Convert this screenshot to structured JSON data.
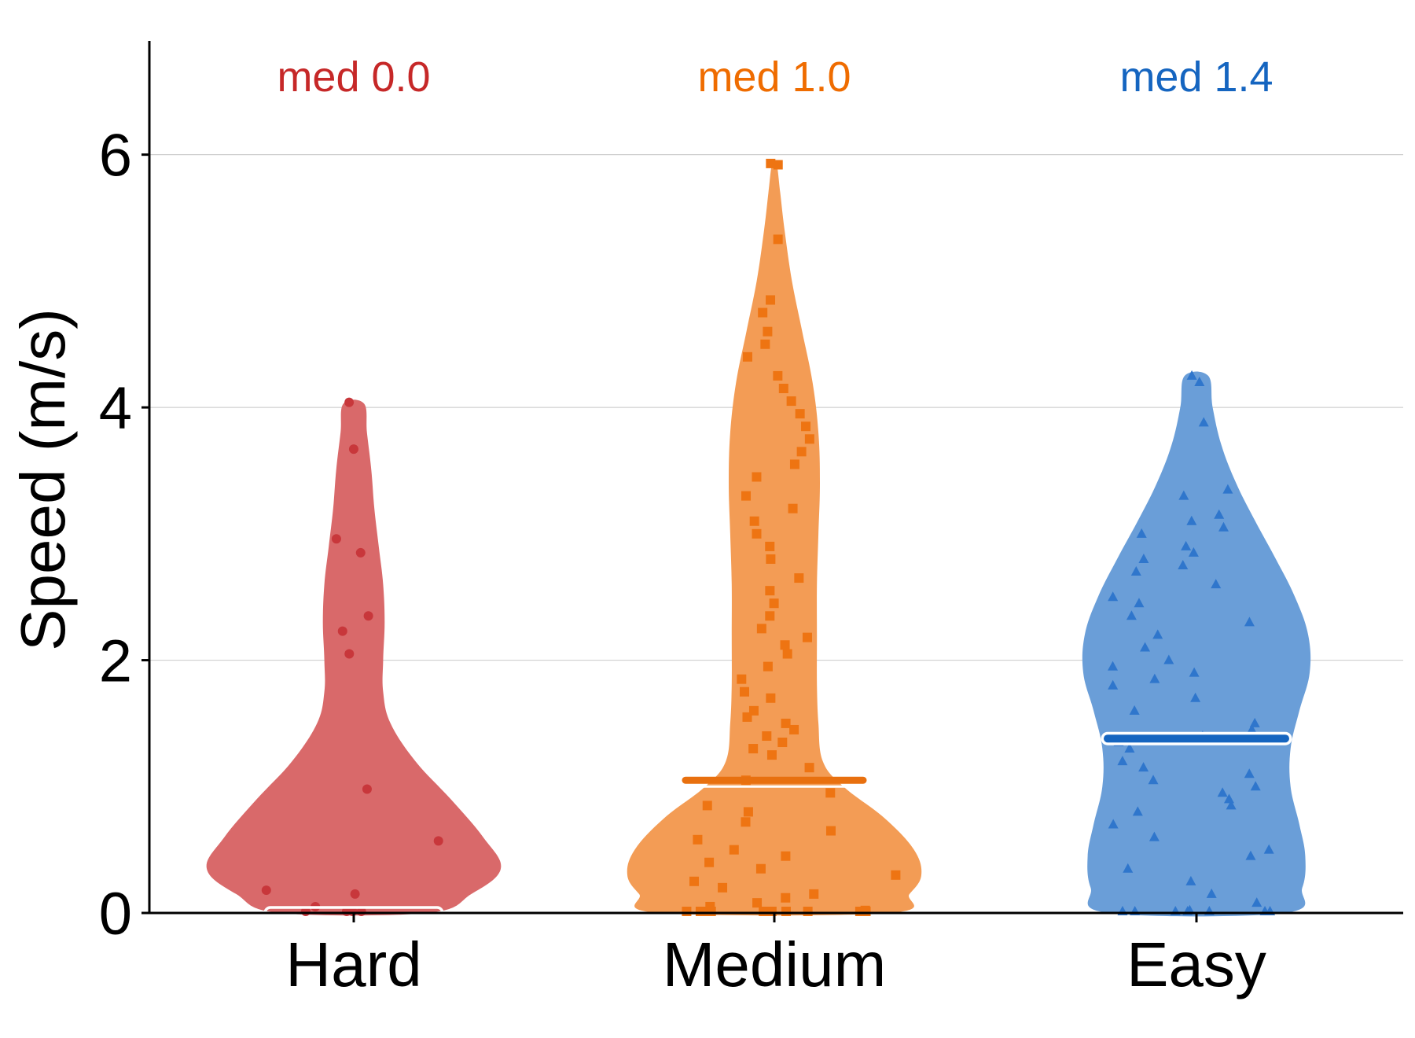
{
  "chart_data": {
    "type": "violin",
    "xlabel": "",
    "ylabel": "Speed (m/s)",
    "ylim": [
      0,
      6.9
    ],
    "yticks": [
      0,
      2,
      4,
      6
    ],
    "grid": "horizontal",
    "legend": "none",
    "categories": [
      "Hard",
      "Medium",
      "Easy"
    ],
    "groups": [
      {
        "category": "Hard",
        "color": "#d9696a",
        "point_color": "#c8373b",
        "median_line_color": "#ffffff",
        "text_color": "#c62828",
        "marker": "circle",
        "median": 0.0,
        "median_label": "med 0.0",
        "density": [
          [
            0.0,
            0.5
          ],
          [
            0.15,
            0.8
          ],
          [
            0.35,
            1.0
          ],
          [
            0.6,
            0.88
          ],
          [
            0.9,
            0.66
          ],
          [
            1.2,
            0.42
          ],
          [
            1.5,
            0.25
          ],
          [
            1.75,
            0.2
          ],
          [
            2.0,
            0.2
          ],
          [
            2.3,
            0.21
          ],
          [
            2.6,
            0.2
          ],
          [
            2.9,
            0.17
          ],
          [
            3.2,
            0.14
          ],
          [
            3.5,
            0.12
          ],
          [
            3.8,
            0.09
          ],
          [
            4.03,
            0.07
          ]
        ],
        "points": [
          0.0,
          0.0,
          0.0,
          0.05,
          0.0,
          0.15,
          0.18,
          0.57,
          0.98,
          2.05,
          2.23,
          2.35,
          2.85,
          2.96,
          3.67,
          4.04
        ]
      },
      {
        "category": "Medium",
        "color": "#f39c55",
        "point_color": "#ee7412",
        "median_line_color": "#e8700f",
        "text_color": "#ef6c00",
        "marker": "square",
        "median": 1.05,
        "median_label": "med 1.0",
        "density": [
          [
            0.0,
            0.78
          ],
          [
            0.15,
            0.92
          ],
          [
            0.3,
            1.0
          ],
          [
            0.5,
            0.95
          ],
          [
            0.75,
            0.75
          ],
          [
            1.0,
            0.47
          ],
          [
            1.2,
            0.33
          ],
          [
            1.5,
            0.3
          ],
          [
            1.8,
            0.29
          ],
          [
            2.2,
            0.29
          ],
          [
            2.6,
            0.29
          ],
          [
            3.0,
            0.3
          ],
          [
            3.4,
            0.31
          ],
          [
            3.8,
            0.3
          ],
          [
            4.2,
            0.26
          ],
          [
            4.6,
            0.19
          ],
          [
            5.0,
            0.12
          ],
          [
            5.4,
            0.07
          ],
          [
            5.7,
            0.04
          ],
          [
            5.93,
            0.015
          ]
        ],
        "points": [
          0.0,
          0.0,
          0.0,
          0.0,
          0.0,
          0.0,
          0.0,
          0.0,
          0.0,
          0.0,
          0.02,
          0.05,
          0.08,
          0.12,
          0.15,
          0.2,
          0.25,
          0.3,
          0.35,
          0.4,
          0.45,
          0.5,
          0.58,
          0.65,
          0.72,
          0.8,
          0.85,
          0.95,
          1.05,
          1.15,
          1.25,
          1.3,
          1.35,
          1.4,
          1.45,
          1.5,
          1.55,
          1.6,
          1.7,
          1.75,
          1.85,
          1.95,
          2.05,
          2.12,
          2.18,
          2.25,
          2.35,
          2.45,
          2.55,
          2.65,
          2.8,
          2.9,
          3.0,
          3.1,
          3.2,
          3.3,
          3.45,
          3.55,
          3.65,
          3.75,
          3.85,
          3.95,
          4.05,
          4.15,
          4.25,
          4.4,
          4.5,
          4.6,
          4.75,
          4.85,
          5.33,
          5.92,
          5.93
        ]
      },
      {
        "category": "Easy",
        "color": "#6a9ed8",
        "point_color": "#2f76cc",
        "median_line_color": "#1565c0",
        "text_color": "#1565c0",
        "marker": "triangle",
        "median": 1.38,
        "median_label": "med 1.4",
        "density": [
          [
            0.0,
            0.6
          ],
          [
            0.2,
            0.72
          ],
          [
            0.45,
            0.74
          ],
          [
            0.7,
            0.7
          ],
          [
            1.0,
            0.64
          ],
          [
            1.3,
            0.64
          ],
          [
            1.6,
            0.7
          ],
          [
            1.9,
            0.77
          ],
          [
            2.2,
            0.76
          ],
          [
            2.5,
            0.67
          ],
          [
            2.8,
            0.54
          ],
          [
            3.1,
            0.4
          ],
          [
            3.4,
            0.27
          ],
          [
            3.7,
            0.17
          ],
          [
            4.0,
            0.11
          ],
          [
            4.25,
            0.08
          ]
        ],
        "points": [
          0.0,
          0.0,
          0.0,
          0.0,
          0.0,
          0.0,
          0.0,
          0.02,
          0.08,
          0.15,
          0.25,
          0.35,
          0.45,
          0.5,
          0.6,
          0.7,
          0.8,
          0.85,
          0.9,
          0.95,
          1.0,
          1.05,
          1.1,
          1.15,
          1.2,
          1.3,
          1.35,
          1.4,
          1.45,
          1.5,
          1.6,
          1.7,
          1.8,
          1.85,
          1.9,
          1.95,
          2.0,
          2.1,
          2.2,
          2.3,
          2.35,
          2.45,
          2.5,
          2.6,
          2.7,
          2.75,
          2.8,
          2.85,
          2.9,
          3.0,
          3.05,
          3.1,
          3.15,
          3.3,
          3.35,
          3.88,
          4.2,
          4.25
        ]
      }
    ]
  }
}
